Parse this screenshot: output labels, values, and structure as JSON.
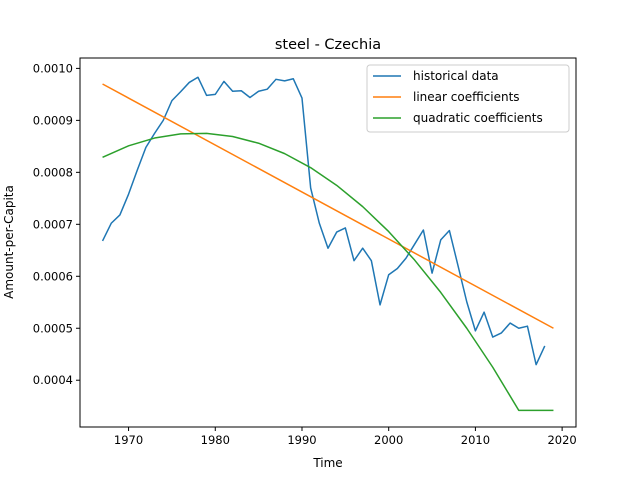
{
  "chart_data": {
    "type": "line",
    "title": "steel - Czechia",
    "xlabel": "Time",
    "ylabel": "Amount-per-Capita",
    "xlim": [
      1964.4,
      2021.6
    ],
    "ylim": [
      0.00031,
      0.00102
    ],
    "xticks": [
      1970,
      1980,
      1990,
      2000,
      2010,
      2020
    ],
    "xtick_labels": [
      "1970",
      "1980",
      "1990",
      "2000",
      "2010",
      "2020"
    ],
    "yticks": [
      0.0004,
      0.0005,
      0.0006,
      0.0007,
      0.0008,
      0.0009,
      0.001
    ],
    "ytick_labels": [
      "0.0004",
      "0.0005",
      "0.0006",
      "0.0007",
      "0.0008",
      "0.0009",
      "0.0010"
    ],
    "grid": false,
    "legend_position": "top-right",
    "series": [
      {
        "name": "historical data",
        "color": "#1f77b4",
        "x": [
          1967,
          1968,
          1969,
          1970,
          1971,
          1972,
          1973,
          1974,
          1975,
          1976,
          1977,
          1978,
          1979,
          1980,
          1981,
          1982,
          1983,
          1984,
          1985,
          1986,
          1987,
          1988,
          1989,
          1990,
          1991,
          1992,
          1993,
          1994,
          1995,
          1996,
          1997,
          1998,
          1999,
          2000,
          2001,
          2002,
          2003,
          2004,
          2005,
          2006,
          2007,
          2008,
          2009,
          2010,
          2011,
          2012,
          2013,
          2014,
          2015,
          2016,
          2017,
          2018
        ],
        "y": [
          0.000668,
          0.000702,
          0.000718,
          0.000758,
          0.000804,
          0.000848,
          0.000875,
          0.0009,
          0.000938,
          0.000955,
          0.000973,
          0.000983,
          0.000948,
          0.00095,
          0.000975,
          0.000956,
          0.000957,
          0.000944,
          0.000956,
          0.00096,
          0.000979,
          0.000976,
          0.00098,
          0.000943,
          0.00077,
          0.000702,
          0.000654,
          0.000685,
          0.000693,
          0.00063,
          0.000654,
          0.00063,
          0.000545,
          0.000603,
          0.000615,
          0.000635,
          0.000662,
          0.000689,
          0.000606,
          0.00067,
          0.000688,
          0.00062,
          0.000551,
          0.000495,
          0.000531,
          0.000483,
          0.000491,
          0.00051,
          0.0005,
          0.000504,
          0.00043,
          0.000466
        ]
      },
      {
        "name": "linear coefficients",
        "color": "#ff7f0e",
        "x": [
          1967,
          2019
        ],
        "y": [
          0.00097,
          0.0005
        ]
      },
      {
        "name": "quadratic coefficients",
        "color": "#2ca02c",
        "x": [
          1967,
          1970,
          1973,
          1976,
          1979,
          1982,
          1985,
          1988,
          1991,
          1994,
          1997,
          2000,
          2003,
          2006,
          2009,
          2012,
          2015,
          2019
        ],
        "y": [
          0.000829,
          0.000851,
          0.000866,
          0.000874,
          0.000875,
          0.000869,
          0.000856,
          0.000836,
          0.000809,
          0.000775,
          0.000734,
          0.000686,
          0.000631,
          0.000569,
          0.0005,
          0.000425,
          0.000342,
          0.000342
        ]
      }
    ]
  }
}
